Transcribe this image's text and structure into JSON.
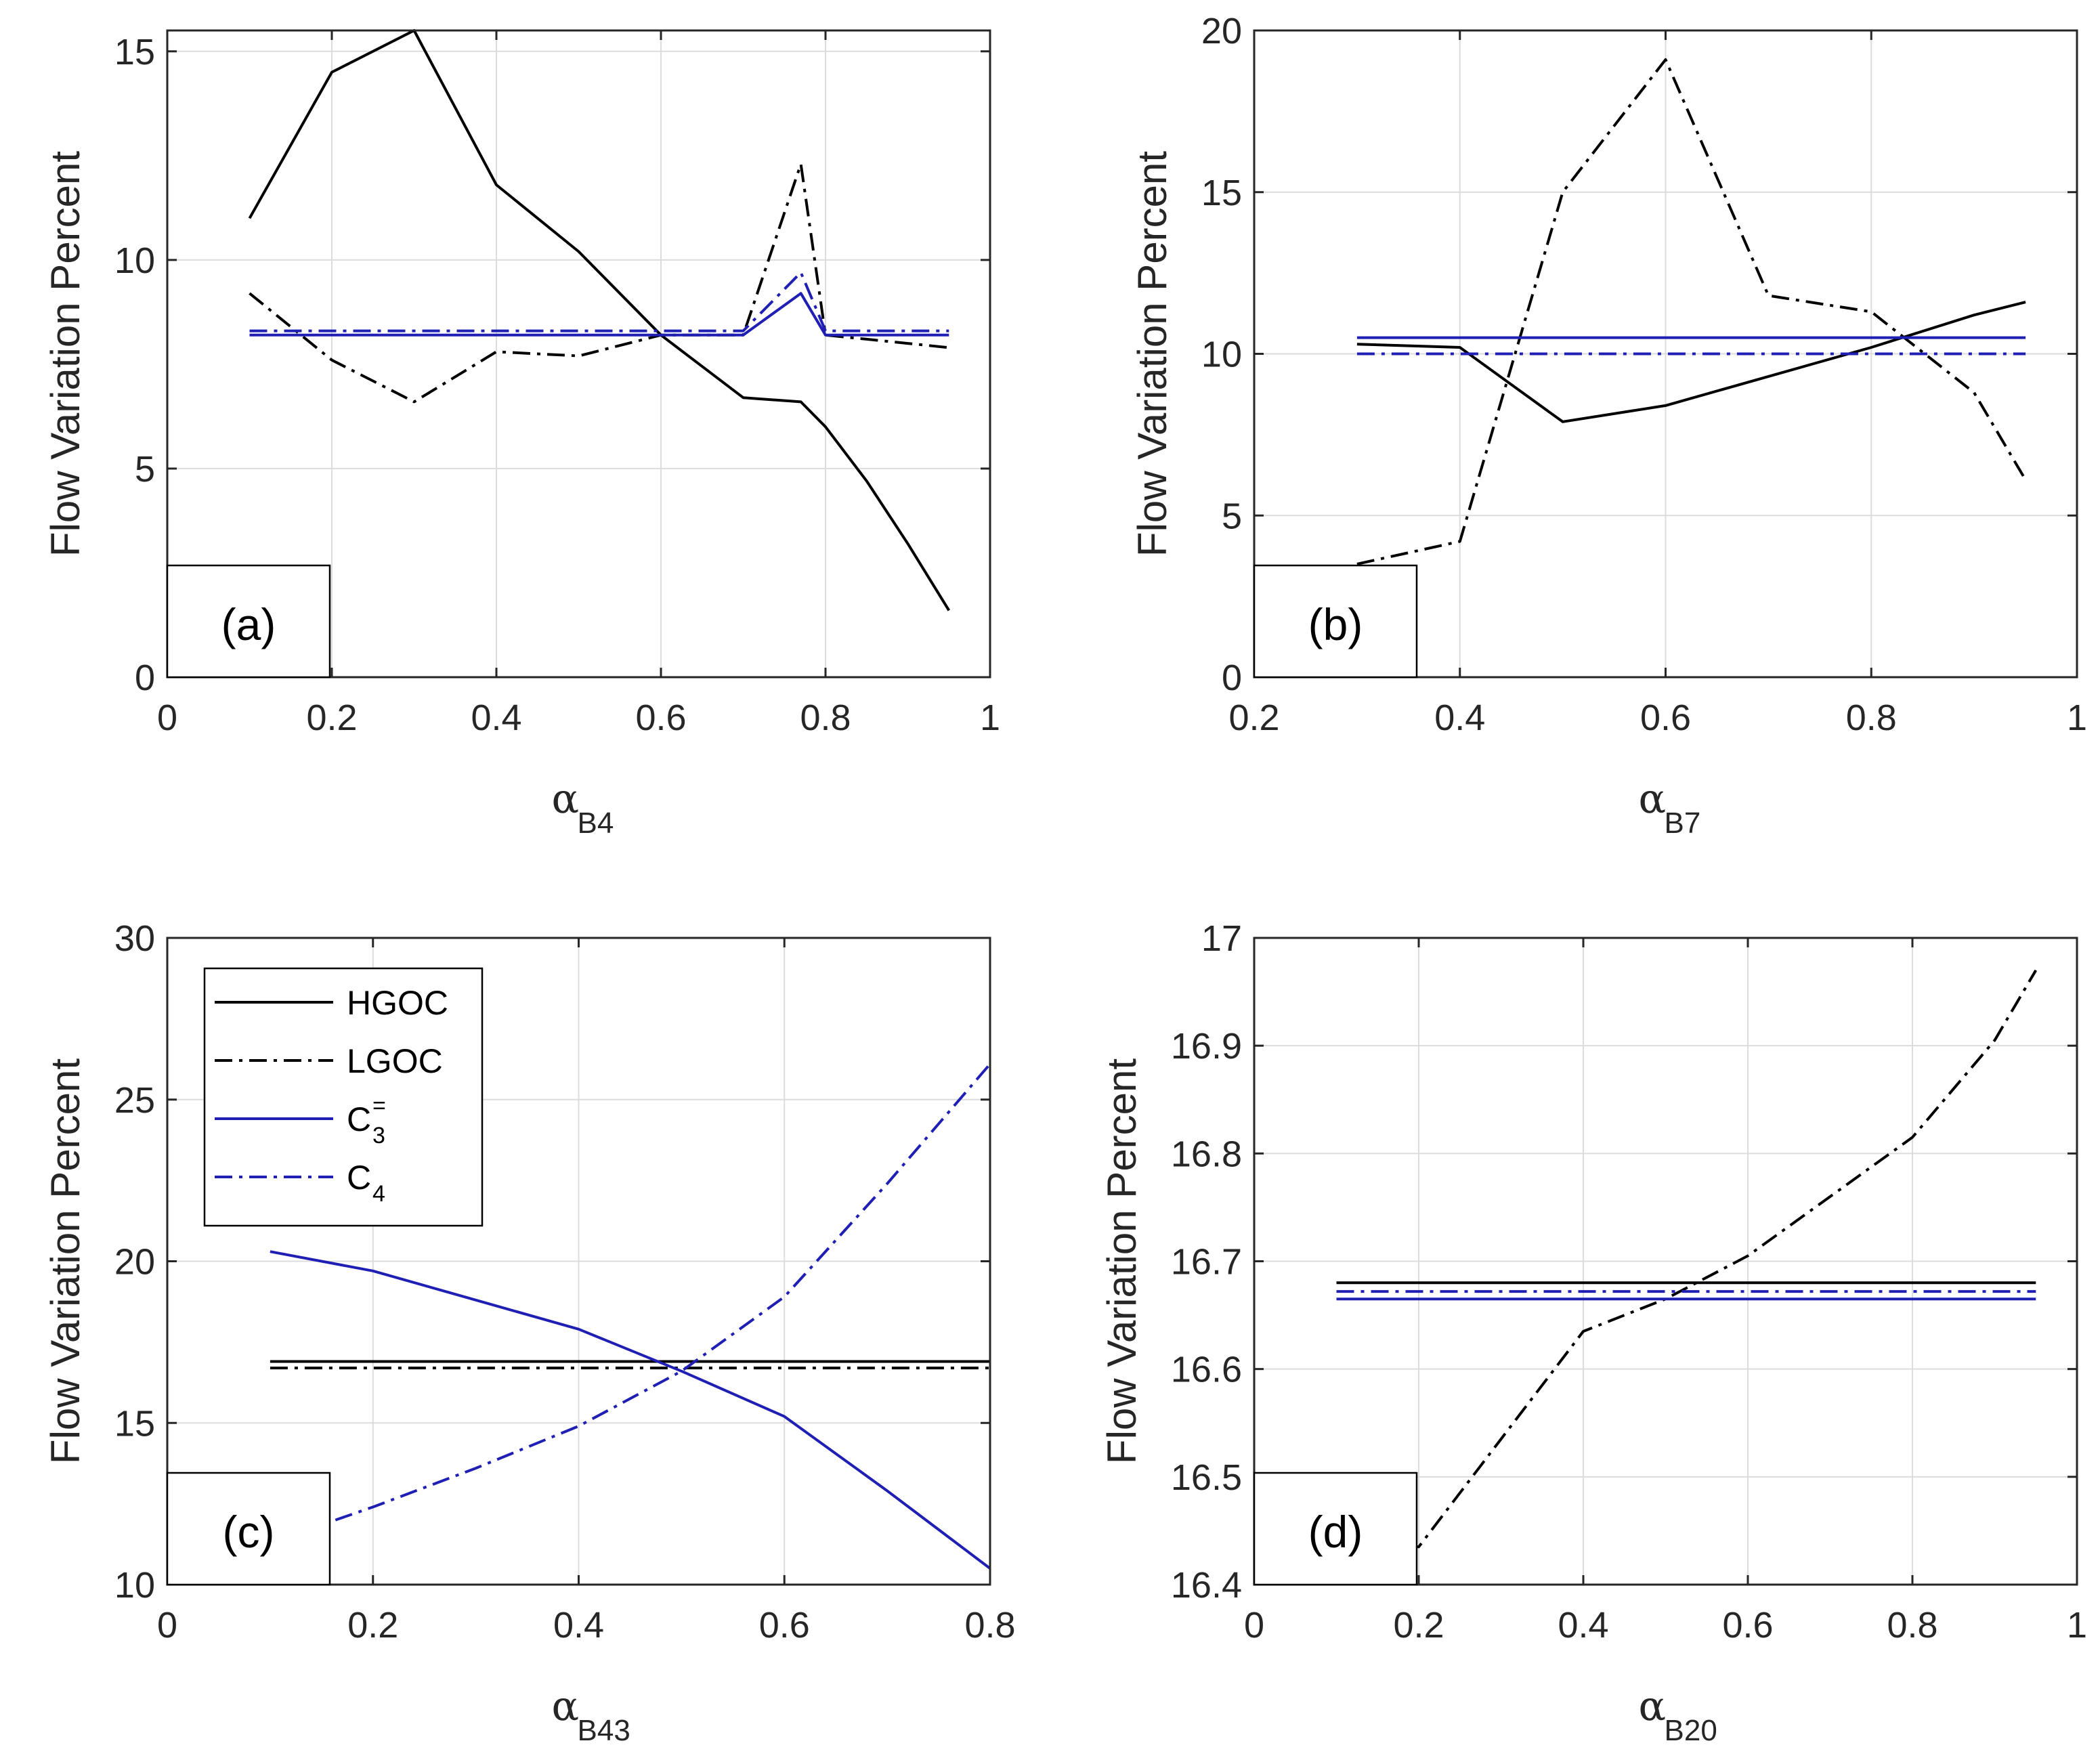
{
  "chart_data": [
    {
      "type": "line",
      "panel_label": "(a)",
      "xlabel_symbol": "α",
      "xlabel_sub": "B4",
      "ylabel": "Flow Variation Percent",
      "xlim": [
        0,
        1
      ],
      "ylim": [
        0,
        15.5
      ],
      "xticks": [
        0,
        0.2,
        0.4,
        0.6,
        0.8,
        1
      ],
      "xtick_labels": [
        "0",
        "0.2",
        "0.4",
        "0.6",
        "0.8",
        "1"
      ],
      "yticks": [
        0,
        5,
        10,
        15
      ],
      "ytick_labels": [
        "0",
        "5",
        "10",
        "15"
      ],
      "grid": true,
      "series": [
        {
          "key": "HGOC",
          "x": [
            0.1,
            0.2,
            0.3,
            0.4,
            0.5,
            0.6,
            0.7,
            0.77,
            0.8,
            0.85,
            0.9,
            0.95
          ],
          "y": [
            11.0,
            14.5,
            15.5,
            11.8,
            10.2,
            8.2,
            6.7,
            6.6,
            6.0,
            4.7,
            3.2,
            1.6
          ]
        },
        {
          "key": "LGOC",
          "x": [
            0.1,
            0.2,
            0.3,
            0.4,
            0.5,
            0.6,
            0.7,
            0.77,
            0.8,
            0.85,
            0.9,
            0.95
          ],
          "y": [
            9.2,
            7.6,
            6.6,
            7.8,
            7.7,
            8.2,
            8.2,
            12.3,
            8.2,
            8.1,
            8.0,
            7.9
          ]
        },
        {
          "key": "C3",
          "x": [
            0.1,
            0.2,
            0.3,
            0.4,
            0.5,
            0.6,
            0.7,
            0.77,
            0.8,
            0.85,
            0.9,
            0.95
          ],
          "y": [
            8.2,
            8.2,
            8.2,
            8.2,
            8.2,
            8.2,
            8.2,
            9.2,
            8.2,
            8.2,
            8.2,
            8.2
          ]
        },
        {
          "key": "C4",
          "x": [
            0.1,
            0.2,
            0.3,
            0.4,
            0.5,
            0.6,
            0.7,
            0.77,
            0.8,
            0.85,
            0.9,
            0.95
          ],
          "y": [
            8.3,
            8.3,
            8.3,
            8.3,
            8.3,
            8.3,
            8.3,
            9.7,
            8.3,
            8.3,
            8.3,
            8.3
          ]
        }
      ]
    },
    {
      "type": "line",
      "panel_label": "(b)",
      "xlabel_symbol": "α",
      "xlabel_sub": "B7",
      "ylabel": "Flow Variation Percent",
      "xlim": [
        0.2,
        1
      ],
      "ylim": [
        0,
        20
      ],
      "xticks": [
        0.2,
        0.4,
        0.6,
        0.8,
        1
      ],
      "xtick_labels": [
        "0.2",
        "0.4",
        "0.6",
        "0.8",
        "1"
      ],
      "yticks": [
        0,
        5,
        10,
        15,
        20
      ],
      "ytick_labels": [
        "0",
        "5",
        "10",
        "15",
        "20"
      ],
      "grid": true,
      "series": [
        {
          "key": "HGOC",
          "x": [
            0.3,
            0.4,
            0.5,
            0.6,
            0.7,
            0.8,
            0.9,
            0.95
          ],
          "y": [
            10.3,
            10.2,
            7.9,
            8.4,
            9.3,
            10.2,
            11.2,
            11.6
          ]
        },
        {
          "key": "LGOC",
          "x": [
            0.3,
            0.4,
            0.5,
            0.6,
            0.7,
            0.8,
            0.9,
            0.95
          ],
          "y": [
            3.5,
            4.2,
            15.0,
            19.1,
            11.8,
            11.3,
            8.8,
            6.1
          ]
        },
        {
          "key": "C3",
          "x": [
            0.3,
            0.95
          ],
          "y": [
            10.5,
            10.5
          ]
        },
        {
          "key": "C4",
          "x": [
            0.3,
            0.95
          ],
          "y": [
            10.0,
            10.0
          ]
        }
      ]
    },
    {
      "type": "line",
      "panel_label": "(c)",
      "xlabel_symbol": "α",
      "xlabel_sub": "B43",
      "ylabel": "Flow Variation Percent",
      "xlim": [
        0,
        0.8
      ],
      "ylim": [
        10,
        30
      ],
      "xticks": [
        0,
        0.2,
        0.4,
        0.6,
        0.8
      ],
      "xtick_labels": [
        "0",
        "0.2",
        "0.4",
        "0.6",
        "0.8"
      ],
      "yticks": [
        10,
        15,
        20,
        25,
        30
      ],
      "ytick_labels": [
        "10",
        "15",
        "20",
        "25",
        "30"
      ],
      "grid": true,
      "legend": {
        "position": "upper-left",
        "entries": [
          {
            "key": "HGOC",
            "label": "HGOC",
            "sup": "",
            "sub": ""
          },
          {
            "key": "LGOC",
            "label": "LGOC",
            "sup": "",
            "sub": ""
          },
          {
            "key": "C3",
            "label": "C",
            "sup": "=",
            "sub": "3"
          },
          {
            "key": "C4",
            "label": "C",
            "sup": "",
            "sub": "4"
          }
        ]
      },
      "series": [
        {
          "key": "HGOC",
          "x": [
            0.1,
            0.8
          ],
          "y": [
            16.9,
            16.9
          ]
        },
        {
          "key": "LGOC",
          "x": [
            0.1,
            0.8
          ],
          "y": [
            16.7,
            16.7
          ]
        },
        {
          "key": "C3",
          "x": [
            0.1,
            0.2,
            0.3,
            0.4,
            0.5,
            0.6,
            0.7,
            0.8
          ],
          "y": [
            20.3,
            19.7,
            18.8,
            17.9,
            16.6,
            15.2,
            12.9,
            10.5
          ]
        },
        {
          "key": "C4",
          "x": [
            0.1,
            0.2,
            0.3,
            0.4,
            0.5,
            0.6,
            0.7,
            0.8
          ],
          "y": [
            11.3,
            12.4,
            13.6,
            14.9,
            16.6,
            18.9,
            22.4,
            26.1
          ]
        }
      ]
    },
    {
      "type": "line",
      "panel_label": "(d)",
      "xlabel_symbol": "α",
      "xlabel_sub": "B20",
      "ylabel": "Flow Variation Percent",
      "xlim": [
        0,
        1
      ],
      "ylim": [
        16.4,
        17
      ],
      "xticks": [
        0,
        0.2,
        0.4,
        0.6,
        0.8,
        1
      ],
      "xtick_labels": [
        "0",
        "0.2",
        "0.4",
        "0.6",
        "0.8",
        "1"
      ],
      "yticks": [
        16.4,
        16.5,
        16.6,
        16.7,
        16.8,
        16.9,
        17
      ],
      "ytick_labels": [
        "16.4",
        "16.5",
        "16.6",
        "16.7",
        "16.8",
        "16.9",
        "17"
      ],
      "grid": true,
      "series": [
        {
          "key": "HGOC",
          "x": [
            0.1,
            0.95
          ],
          "y": [
            16.68,
            16.68
          ]
        },
        {
          "key": "LGOC",
          "x": [
            0.1,
            0.2,
            0.3,
            0.4,
            0.5,
            0.6,
            0.7,
            0.8,
            0.9,
            0.95
          ],
          "y": [
            16.435,
            16.435,
            16.535,
            16.635,
            16.665,
            16.705,
            16.76,
            16.815,
            16.905,
            16.97
          ]
        },
        {
          "key": "C3",
          "x": [
            0.1,
            0.95
          ],
          "y": [
            16.665,
            16.665
          ]
        },
        {
          "key": "C4",
          "x": [
            0.1,
            0.95
          ],
          "y": [
            16.672,
            16.672
          ]
        }
      ]
    }
  ],
  "colors": {
    "black": "#000000",
    "blue": "#1f1fb4",
    "grid": "#dcdcdc",
    "axis": "#262626"
  }
}
